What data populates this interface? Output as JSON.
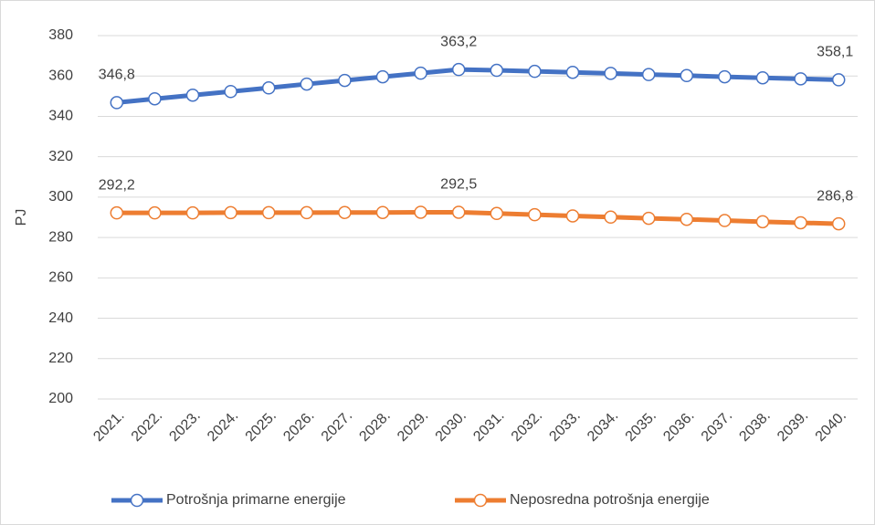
{
  "chart_data": {
    "type": "line",
    "y_label": "PJ",
    "categories": [
      "2021.",
      "2022.",
      "2023.",
      "2024.",
      "2025.",
      "2026.",
      "2027.",
      "2028.",
      "2029.",
      "2030.",
      "2031.",
      "2032.",
      "2033.",
      "2034.",
      "2035.",
      "2036.",
      "2037.",
      "2038.",
      "2039.",
      "2040."
    ],
    "series": [
      {
        "name": "Potrošnja primarne energije",
        "color": "#4472c4",
        "values": [
          346.8,
          348.7,
          350.5,
          352.3,
          354.1,
          356.0,
          357.8,
          359.6,
          361.4,
          363.2,
          362.8,
          362.3,
          361.8,
          361.3,
          360.7,
          360.2,
          359.6,
          359.1,
          358.6,
          358.1
        ],
        "value_labels": [
          "346,8",
          null,
          null,
          null,
          null,
          null,
          null,
          null,
          null,
          "363,2",
          null,
          null,
          null,
          null,
          null,
          null,
          null,
          null,
          null,
          "358,1"
        ]
      },
      {
        "name": "Neposredna potrošnja energije",
        "color": "#ed7d31",
        "values": [
          292.2,
          292.2,
          292.2,
          292.3,
          292.3,
          292.3,
          292.4,
          292.4,
          292.5,
          292.5,
          291.9,
          291.3,
          290.7,
          290.1,
          289.5,
          289.0,
          288.4,
          287.8,
          287.3,
          286.8
        ],
        "value_labels": [
          "292,2",
          null,
          null,
          null,
          null,
          null,
          null,
          null,
          null,
          "292,5",
          null,
          null,
          null,
          null,
          null,
          null,
          null,
          null,
          null,
          "286,8"
        ]
      }
    ],
    "ylim": [
      200,
      380
    ],
    "yticks": [
      200,
      220,
      240,
      260,
      280,
      300,
      320,
      340,
      360,
      380
    ],
    "grid": true,
    "legend": "bottom"
  }
}
